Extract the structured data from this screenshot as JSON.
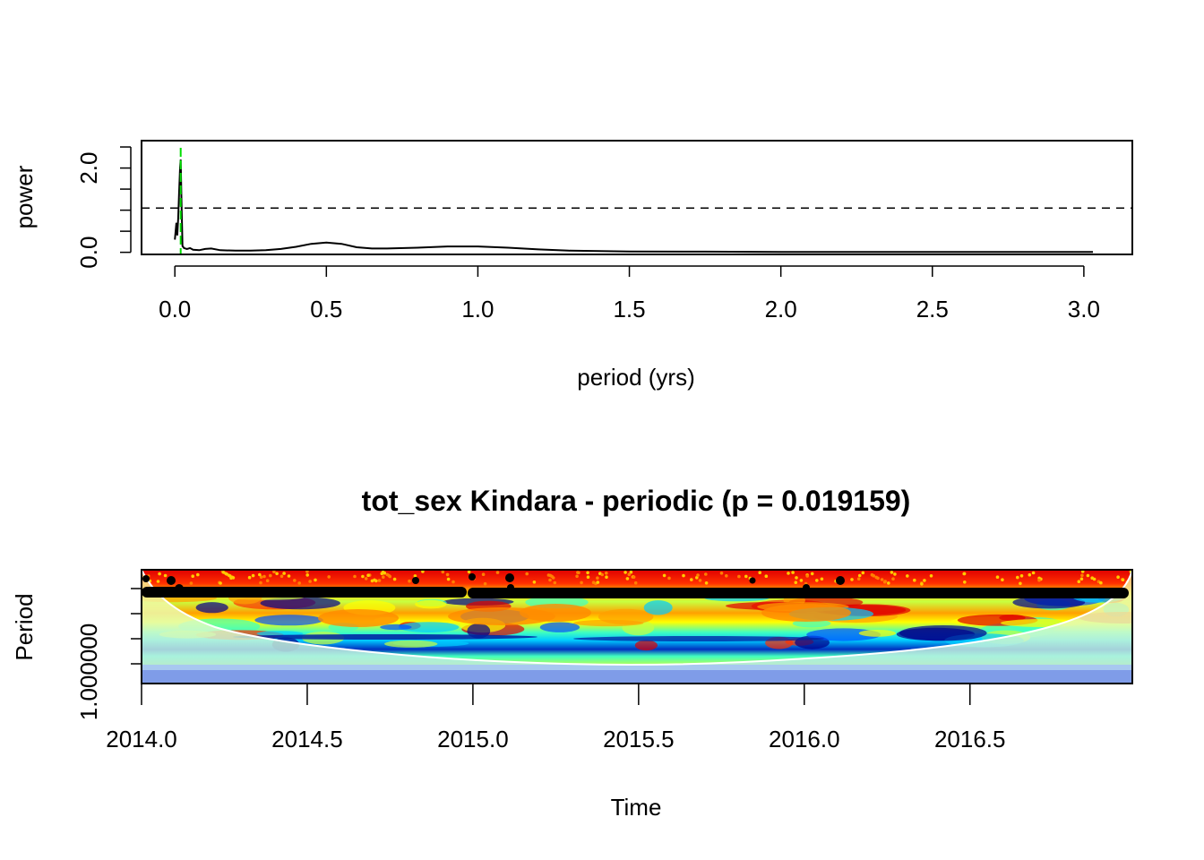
{
  "chart_data": [
    {
      "type": "line",
      "title": "",
      "xlabel": "period (yrs)",
      "ylabel": "power",
      "xlim": [
        -0.11,
        3.16
      ],
      "ylim": [
        -0.05,
        2.65
      ],
      "xticks": [
        0.0,
        0.5,
        1.0,
        1.5,
        2.0,
        2.5,
        3.0
      ],
      "xtick_labels": [
        "0.0",
        "0.5",
        "1.0",
        "1.5",
        "2.0",
        "2.5",
        "3.0"
      ],
      "yticks": [
        0.0,
        0.5,
        1.0,
        1.5,
        2.0,
        2.5
      ],
      "ytick_labels": [
        "0.0",
        "",
        "",
        "",
        "2.0",
        ""
      ],
      "significance_level": 1.05,
      "peak_period": 0.0192,
      "line_color": "#000000",
      "peak_marker_color": "#00dd00",
      "series": [
        {
          "x": [
            0.0,
            0.005,
            0.008,
            0.011,
            0.014,
            0.017,
            0.0192,
            0.022,
            0.025,
            0.03,
            0.04,
            0.05,
            0.06,
            0.08,
            0.1,
            0.12,
            0.15,
            0.2,
            0.25,
            0.3,
            0.35,
            0.4,
            0.45,
            0.5,
            0.55,
            0.6,
            0.65,
            0.7,
            0.8,
            0.9,
            1.0,
            1.1,
            1.2,
            1.3,
            1.4,
            1.5,
            1.75,
            2.0,
            2.5,
            3.0,
            3.03
          ],
          "y": [
            0.3,
            0.7,
            0.4,
            0.8,
            1.4,
            2.0,
            2.2,
            1.2,
            0.15,
            0.1,
            0.08,
            0.1,
            0.06,
            0.05,
            0.08,
            0.09,
            0.05,
            0.04,
            0.04,
            0.05,
            0.08,
            0.13,
            0.2,
            0.23,
            0.2,
            0.12,
            0.09,
            0.09,
            0.11,
            0.14,
            0.14,
            0.11,
            0.07,
            0.04,
            0.03,
            0.02,
            0.015,
            0.01,
            0.01,
            0.01,
            0.01
          ]
        }
      ]
    },
    {
      "type": "heatmap",
      "title": "tot_sex Kindara - periodic (p = 0.019159)",
      "xlabel": "Time",
      "ylabel": "Period",
      "xlim": [
        2014.0,
        2016.99
      ],
      "xticks": [
        2014.0,
        2014.5,
        2015.0,
        2015.5,
        2016.0,
        2016.5
      ],
      "xtick_labels": [
        "2014.0",
        "2014.5",
        "2015.0",
        "2015.5",
        "2016.0",
        "2016.5"
      ],
      "ytick_labels": [
        "1.000000",
        "",
        "",
        ""
      ],
      "significance_contours": "black",
      "cone_of_influence": "white",
      "color_scale": [
        "#00008b",
        "#0050ff",
        "#00ccff",
        "#40ffc0",
        "#c8ff40",
        "#ffff00",
        "#ffa000",
        "#ff3000",
        "#e00000"
      ]
    }
  ]
}
